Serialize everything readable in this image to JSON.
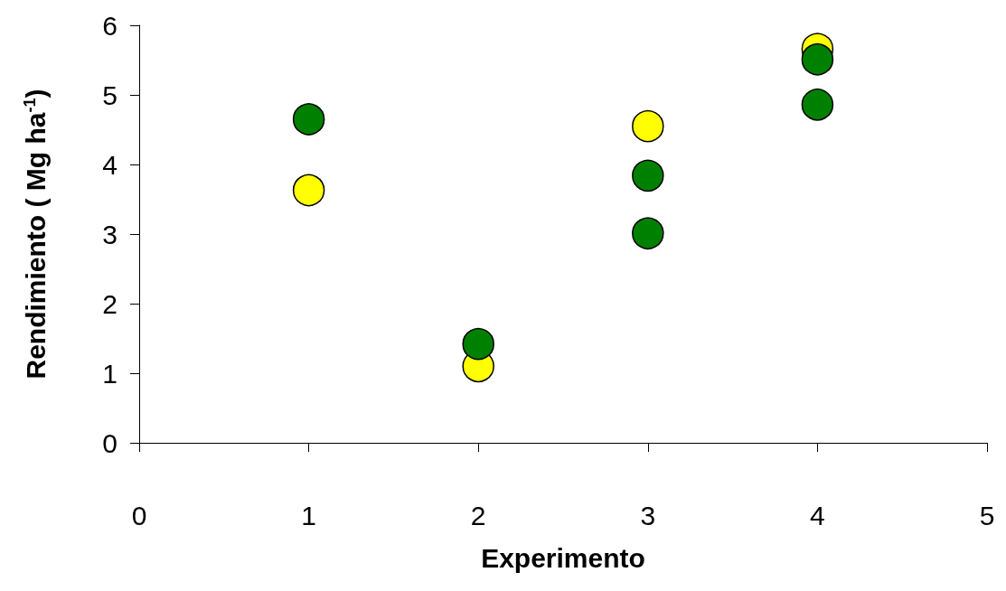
{
  "chart_data": {
    "type": "scatter",
    "xlabel": "Experimento",
    "ylabel": "Rendimiento ( Mg ha$^{-1}$)",
    "xlim": [
      0,
      5
    ],
    "xticks": [
      0,
      1,
      2,
      3,
      4,
      5
    ],
    "ylim": [
      0,
      6
    ],
    "yticks": [
      0,
      1,
      2,
      3,
      4,
      5,
      6
    ],
    "grid": false,
    "marker": "circle",
    "series": [
      {
        "color": "#ffff00",
        "x": [
          1,
          2,
          3,
          4
        ],
        "values": [
          3.63,
          1.1,
          4.55,
          5.66
        ]
      },
      {
        "color": "#008000",
        "x": [
          1,
          2,
          3,
          3,
          4,
          4
        ],
        "values": [
          4.65,
          1.42,
          3.84,
          3.01,
          5.51,
          4.86
        ]
      }
    ]
  }
}
